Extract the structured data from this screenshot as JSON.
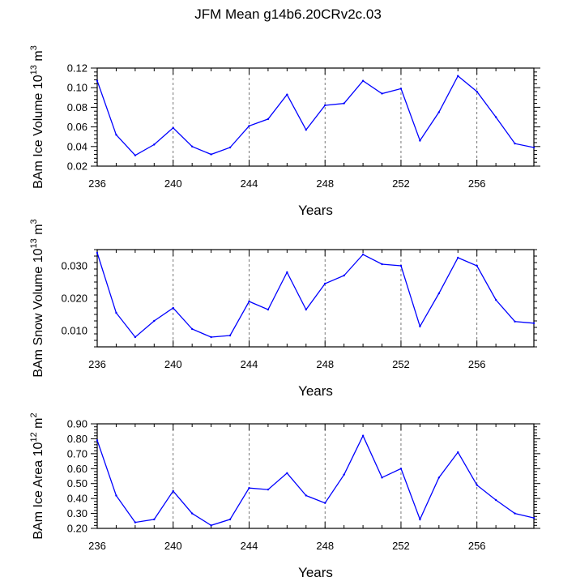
{
  "title": "JFM Mean g14b6.20CRv2c.03",
  "colors": {
    "series": "#0000ff",
    "axis": "#000000",
    "gridline": "#555555"
  },
  "chart_data": [
    {
      "type": "line",
      "xlabel": "Years",
      "ylabel": "BAm Ice Volume 10",
      "ylabel_sup": "13",
      "ylabel_unit": " m",
      "ylabel_unit_sup": "3",
      "xlim": [
        236,
        259
      ],
      "ylim": [
        0.02,
        0.12
      ],
      "xticks": [
        236,
        240,
        244,
        248,
        252,
        256
      ],
      "yticks": [
        0.02,
        0.04,
        0.06,
        0.08,
        0.1,
        0.12
      ],
      "ytick_labels": [
        "0.02",
        "0.04",
        "0.06",
        "0.08",
        "0.10",
        "0.12"
      ],
      "vlines": [
        240,
        244,
        248,
        252,
        256
      ],
      "x": [
        236,
        237,
        238,
        239,
        240,
        241,
        242,
        243,
        244,
        245,
        246,
        247,
        248,
        249,
        250,
        251,
        252,
        253,
        254,
        255,
        256,
        257,
        258,
        259
      ],
      "values": [
        0.107,
        0.052,
        0.031,
        0.042,
        0.059,
        0.04,
        0.032,
        0.039,
        0.061,
        0.068,
        0.093,
        0.057,
        0.082,
        0.084,
        0.107,
        0.094,
        0.099,
        0.046,
        0.075,
        0.112,
        0.096,
        0.07,
        0.043,
        0.039
      ]
    },
    {
      "type": "line",
      "xlabel": "Years",
      "ylabel": "BAm Snow Volume 10",
      "ylabel_sup": "13",
      "ylabel_unit": " m",
      "ylabel_unit_sup": "3",
      "xlim": [
        236,
        259
      ],
      "ylim": [
        0.005,
        0.035
      ],
      "xticks": [
        236,
        240,
        244,
        248,
        252,
        256
      ],
      "yticks": [
        0.01,
        0.02,
        0.03
      ],
      "ytick_labels": [
        "0.010",
        "0.020",
        "0.030"
      ],
      "vlines": [
        240,
        244,
        248,
        252,
        256
      ],
      "x": [
        236,
        237,
        238,
        239,
        240,
        241,
        242,
        243,
        244,
        245,
        246,
        247,
        248,
        249,
        250,
        251,
        252,
        253,
        254,
        255,
        256,
        257,
        258,
        259
      ],
      "values": [
        0.034,
        0.0155,
        0.008,
        0.013,
        0.017,
        0.0105,
        0.008,
        0.0085,
        0.019,
        0.0165,
        0.028,
        0.0165,
        0.0245,
        0.027,
        0.0335,
        0.0305,
        0.03,
        0.0113,
        0.0215,
        0.0325,
        0.03,
        0.0195,
        0.0128,
        0.0123
      ]
    },
    {
      "type": "line",
      "xlabel": "Years",
      "ylabel": "BAm Ice Area 10",
      "ylabel_sup": "12",
      "ylabel_unit": " m",
      "ylabel_unit_sup": "2",
      "xlim": [
        236,
        259
      ],
      "ylim": [
        0.2,
        0.9
      ],
      "xticks": [
        236,
        240,
        244,
        248,
        252,
        256
      ],
      "yticks": [
        0.2,
        0.3,
        0.4,
        0.5,
        0.6,
        0.7,
        0.8,
        0.9
      ],
      "ytick_labels": [
        "0.20",
        "0.30",
        "0.40",
        "0.50",
        "0.60",
        "0.70",
        "0.80",
        "0.90"
      ],
      "vlines": [
        240,
        244,
        248,
        252,
        256
      ],
      "x": [
        236,
        237,
        238,
        239,
        240,
        241,
        242,
        243,
        244,
        245,
        246,
        247,
        248,
        249,
        250,
        251,
        252,
        253,
        254,
        255,
        256,
        257,
        258,
        259
      ],
      "values": [
        0.79,
        0.42,
        0.24,
        0.26,
        0.45,
        0.3,
        0.22,
        0.26,
        0.47,
        0.46,
        0.57,
        0.42,
        0.37,
        0.56,
        0.82,
        0.54,
        0.6,
        0.26,
        0.54,
        0.71,
        0.49,
        0.39,
        0.3,
        0.27
      ]
    }
  ]
}
